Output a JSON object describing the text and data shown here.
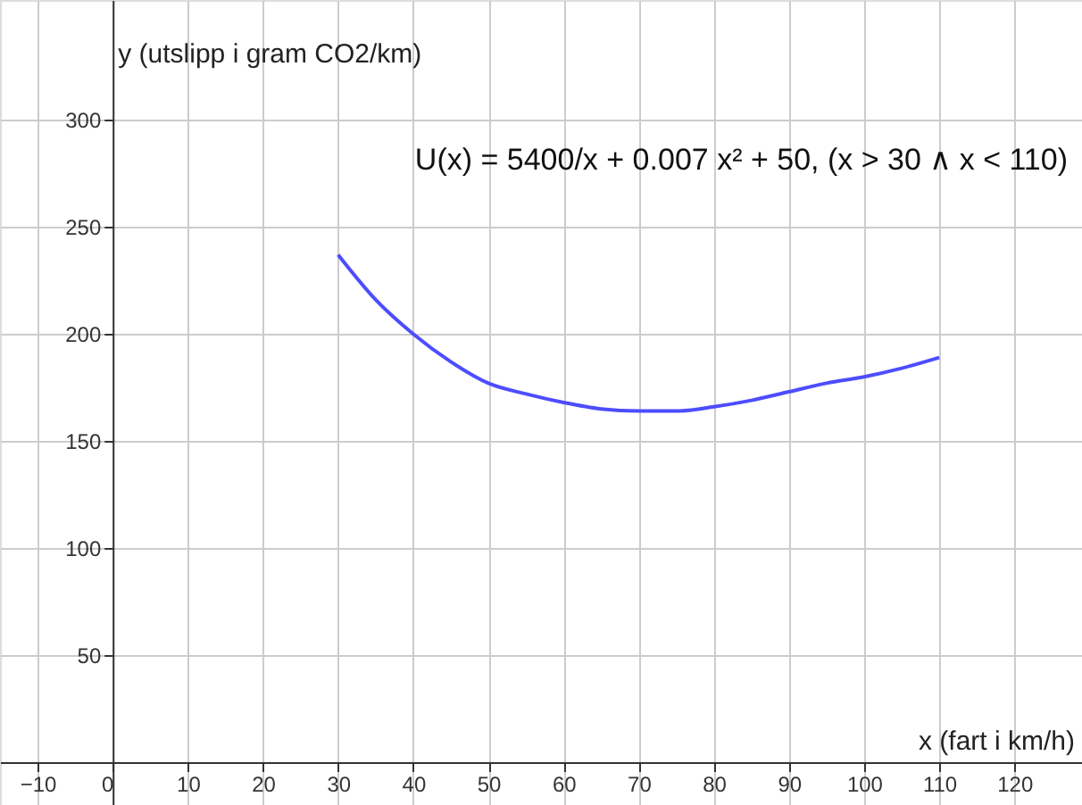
{
  "chart_data": {
    "type": "line",
    "xlabel": "x (fart i km/h)",
    "ylabel": "y (utslipp i gram CO2/km)",
    "annotations": [
      "U(x) = 5400/x + 0.007 x² + 50,    (x > 30 ∧ x < 110)"
    ],
    "x": [
      30,
      35,
      40,
      45,
      50,
      55,
      60,
      65,
      70,
      75,
      80,
      85,
      90,
      95,
      100,
      105,
      110
    ],
    "series": [
      {
        "color": "#4d4dff",
        "values": [
          237,
          216,
          200,
          187,
          177,
          172,
          168,
          165,
          164,
          164,
          166,
          169,
          173,
          177,
          180,
          184,
          189
        ]
      }
    ],
    "xlim": [
      -15,
      129
    ],
    "ylim": [
      -20,
      356
    ],
    "xticks": [
      -10,
      0,
      10,
      20,
      30,
      40,
      50,
      60,
      70,
      80,
      90,
      100,
      110,
      120
    ],
    "yticks": [
      50,
      100,
      150,
      200,
      250,
      300
    ],
    "grid": true,
    "marker": "none",
    "line_style": "solid"
  }
}
